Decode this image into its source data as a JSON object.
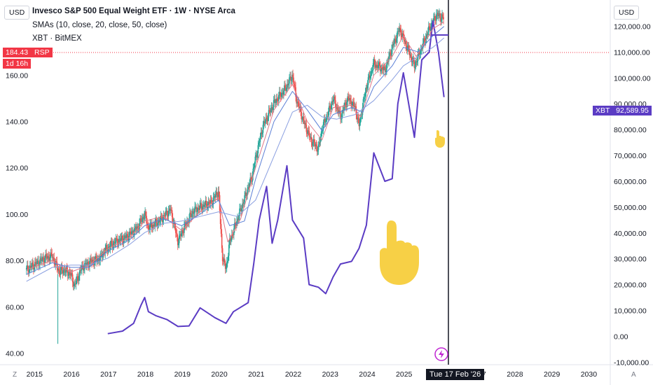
{
  "header": {
    "left_currency": "USD",
    "right_currency": "USD",
    "title": "Invesco S&P 500 Equal Weight ETF · 1W · NYSE Arca",
    "sma_label": "SMAs (10, close, 20, close, 50, close)",
    "xbt_label": "XBT · BitMEX"
  },
  "badges": {
    "rsp_price": "184.43",
    "rsp_symbol": "RSP",
    "countdown": "1d 16h",
    "xbt_symbol": "XBT",
    "xbt_price": "92,589.95",
    "crosshair_date": "Tue 17 Feb '26"
  },
  "corner_left": "Z",
  "corner_right": "A",
  "colors": {
    "up": "#26a69a",
    "down": "#ef5350",
    "xbt": "#5b3cc4",
    "sma_fast": "#e07a8a",
    "sma_mid": "#5b7fd6",
    "sma_slow": "#8a9fe0",
    "price_badge": "#f23645",
    "hand": "#f7d046"
  },
  "icons": {
    "lightning": "lightning-icon",
    "hand_big": "pointing-hand-icon",
    "hand_small": "pointing-hand-small-icon"
  },
  "chart_data": {
    "type": "line",
    "x_ticks": [
      "2015",
      "2016",
      "2017",
      "2018",
      "2019",
      "2020",
      "2021",
      "2022",
      "2023",
      "2024",
      "2025",
      "2027",
      "2028",
      "2029",
      "2030"
    ],
    "left_axis": {
      "ticks": [
        "40.00",
        "60.00",
        "80.00",
        "100.00",
        "120.00",
        "140.00",
        "160.00"
      ],
      "range": [
        35,
        190
      ]
    },
    "right_axis": {
      "ticks": [
        "120,000.00",
        "110,000.00",
        "100,000.00",
        "90,000.00",
        "80,000.00",
        "70,000.00",
        "60,000.00",
        "50,000.00",
        "40,000.00",
        "30,000.00",
        "20,000.00",
        "10,000.00",
        "0.00",
        "-10,000.00"
      ],
      "range": [
        -11000,
        128000
      ]
    },
    "series": [
      {
        "name": "RSP",
        "axis": "left",
        "style": "candles",
        "points": [
          [
            2014.8,
            76
          ],
          [
            2015.0,
            78
          ],
          [
            2015.3,
            81
          ],
          [
            2015.5,
            82
          ],
          [
            2015.6,
            78
          ],
          [
            2015.7,
            75
          ],
          [
            2015.8,
            76
          ],
          [
            2016.0,
            74
          ],
          [
            2016.1,
            69
          ],
          [
            2016.3,
            77
          ],
          [
            2016.5,
            79
          ],
          [
            2016.8,
            81
          ],
          [
            2016.9,
            84
          ],
          [
            2017.2,
            88
          ],
          [
            2017.5,
            90
          ],
          [
            2017.8,
            94
          ],
          [
            2018.0,
            100
          ],
          [
            2018.1,
            94
          ],
          [
            2018.4,
            97
          ],
          [
            2018.7,
            102
          ],
          [
            2018.9,
            88
          ],
          [
            2019.0,
            92
          ],
          [
            2019.3,
            101
          ],
          [
            2019.5,
            103
          ],
          [
            2019.8,
            105
          ],
          [
            2020.0,
            110
          ],
          [
            2020.1,
            82
          ],
          [
            2020.2,
            76
          ],
          [
            2020.3,
            88
          ],
          [
            2020.6,
            102
          ],
          [
            2020.9,
            116
          ],
          [
            2021.0,
            124
          ],
          [
            2021.2,
            138
          ],
          [
            2021.5,
            148
          ],
          [
            2021.8,
            154
          ],
          [
            2022.0,
            160
          ],
          [
            2022.1,
            150
          ],
          [
            2022.3,
            140
          ],
          [
            2022.5,
            132
          ],
          [
            2022.7,
            128
          ],
          [
            2022.8,
            137
          ],
          [
            2023.0,
            145
          ],
          [
            2023.1,
            150
          ],
          [
            2023.3,
            142
          ],
          [
            2023.5,
            150
          ],
          [
            2023.7,
            146
          ],
          [
            2023.8,
            138
          ],
          [
            2024.0,
            155
          ],
          [
            2024.2,
            165
          ],
          [
            2024.5,
            162
          ],
          [
            2024.7,
            172
          ],
          [
            2024.9,
            180
          ],
          [
            2025.0,
            176
          ],
          [
            2025.2,
            168
          ],
          [
            2025.3,
            164
          ],
          [
            2025.5,
            172
          ],
          [
            2025.7,
            180
          ],
          [
            2025.9,
            186
          ],
          [
            2026.1,
            184.4
          ]
        ]
      },
      {
        "name": "XBT",
        "axis": "right",
        "style": "line",
        "points": [
          [
            2017.0,
            1000
          ],
          [
            2017.4,
            2000
          ],
          [
            2017.7,
            5000
          ],
          [
            2017.9,
            12000
          ],
          [
            2018.0,
            15000
          ],
          [
            2018.1,
            9500
          ],
          [
            2018.3,
            8000
          ],
          [
            2018.6,
            6500
          ],
          [
            2018.9,
            3800
          ],
          [
            2019.2,
            4000
          ],
          [
            2019.5,
            11000
          ],
          [
            2019.9,
            7200
          ],
          [
            2020.2,
            5000
          ],
          [
            2020.4,
            9500
          ],
          [
            2020.8,
            13000
          ],
          [
            2020.95,
            28000
          ],
          [
            2021.1,
            45000
          ],
          [
            2021.3,
            58000
          ],
          [
            2021.45,
            36000
          ],
          [
            2021.6,
            45000
          ],
          [
            2021.85,
            66000
          ],
          [
            2022.0,
            45000
          ],
          [
            2022.3,
            38000
          ],
          [
            2022.45,
            20000
          ],
          [
            2022.7,
            19000
          ],
          [
            2022.9,
            16500
          ],
          [
            2023.1,
            23000
          ],
          [
            2023.3,
            28000
          ],
          [
            2023.6,
            29000
          ],
          [
            2023.8,
            34000
          ],
          [
            2024.0,
            43000
          ],
          [
            2024.2,
            71000
          ],
          [
            2024.5,
            60000
          ],
          [
            2024.7,
            61000
          ],
          [
            2024.85,
            90000
          ],
          [
            2025.0,
            102000
          ],
          [
            2025.3,
            77000
          ],
          [
            2025.5,
            107000
          ],
          [
            2025.7,
            110000
          ],
          [
            2025.8,
            122000
          ],
          [
            2025.95,
            110000
          ],
          [
            2026.1,
            92590
          ]
        ]
      },
      {
        "name": "SMA 10",
        "axis": "left",
        "style": "line",
        "points": [
          [
            2014.8,
            76
          ],
          [
            2015.5,
            80
          ],
          [
            2016.0,
            75
          ],
          [
            2016.5,
            78
          ],
          [
            2017.0,
            85
          ],
          [
            2017.6,
            90
          ],
          [
            2018.0,
            97
          ],
          [
            2018.5,
            99
          ],
          [
            2019.0,
            93
          ],
          [
            2019.5,
            101
          ],
          [
            2020.0,
            107
          ],
          [
            2020.25,
            88
          ],
          [
            2020.6,
            98
          ],
          [
            2021.0,
            120
          ],
          [
            2021.5,
            145
          ],
          [
            2022.0,
            156
          ],
          [
            2022.4,
            140
          ],
          [
            2022.8,
            132
          ],
          [
            2023.1,
            146
          ],
          [
            2023.6,
            147
          ],
          [
            2023.85,
            142
          ],
          [
            2024.2,
            160
          ],
          [
            2024.7,
            168
          ],
          [
            2025.0,
            177
          ],
          [
            2025.35,
            168
          ],
          [
            2025.8,
            180
          ],
          [
            2026.1,
            183
          ]
        ]
      },
      {
        "name": "SMA 20",
        "axis": "left",
        "style": "line",
        "points": [
          [
            2014.8,
            74
          ],
          [
            2015.5,
            79
          ],
          [
            2016.0,
            77
          ],
          [
            2016.5,
            77
          ],
          [
            2017.0,
            84
          ],
          [
            2017.6,
            89
          ],
          [
            2018.0,
            95
          ],
          [
            2018.5,
            98
          ],
          [
            2019.0,
            95
          ],
          [
            2019.5,
            100
          ],
          [
            2020.0,
            106
          ],
          [
            2020.3,
            95
          ],
          [
            2020.7,
            97
          ],
          [
            2021.0,
            115
          ],
          [
            2021.5,
            140
          ],
          [
            2022.0,
            153
          ],
          [
            2022.4,
            145
          ],
          [
            2022.8,
            136
          ],
          [
            2023.1,
            143
          ],
          [
            2023.6,
            146
          ],
          [
            2023.9,
            144
          ],
          [
            2024.2,
            155
          ],
          [
            2024.7,
            164
          ],
          [
            2025.0,
            172
          ],
          [
            2025.4,
            170
          ],
          [
            2025.8,
            177
          ],
          [
            2026.1,
            181
          ]
        ]
      },
      {
        "name": "SMA 50",
        "axis": "left",
        "style": "line",
        "points": [
          [
            2014.8,
            71
          ],
          [
            2015.5,
            77
          ],
          [
            2016.0,
            78
          ],
          [
            2016.5,
            78
          ],
          [
            2017.0,
            81
          ],
          [
            2017.6,
            87
          ],
          [
            2018.0,
            92
          ],
          [
            2018.5,
            96
          ],
          [
            2019.0,
            97
          ],
          [
            2019.5,
            99
          ],
          [
            2020.0,
            101
          ],
          [
            2020.5,
            99
          ],
          [
            2021.0,
            106
          ],
          [
            2021.5,
            125
          ],
          [
            2022.0,
            144
          ],
          [
            2022.4,
            147
          ],
          [
            2022.8,
            142
          ],
          [
            2023.2,
            141
          ],
          [
            2023.7,
            143
          ],
          [
            2024.2,
            149
          ],
          [
            2024.7,
            158
          ],
          [
            2025.0,
            164
          ],
          [
            2025.4,
            168
          ],
          [
            2025.8,
            172
          ],
          [
            2026.1,
            176
          ]
        ]
      }
    ]
  }
}
